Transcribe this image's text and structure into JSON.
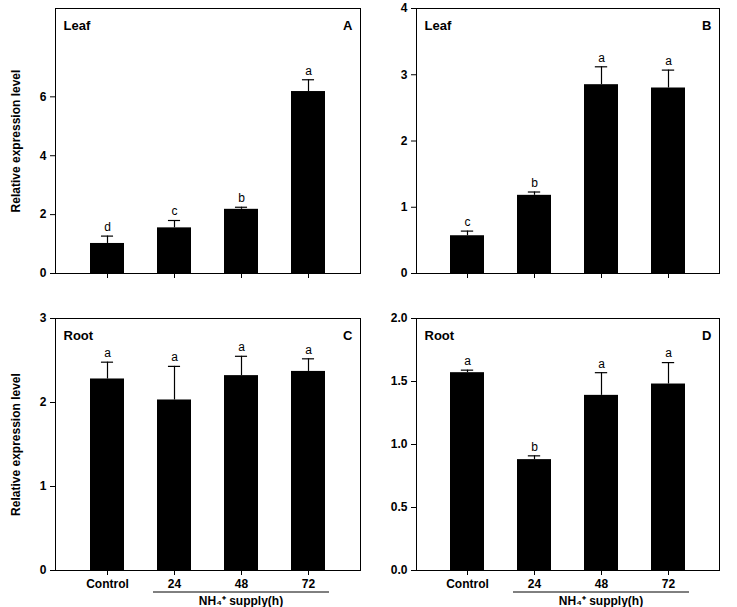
{
  "chart_data": [
    {
      "type": "bar",
      "title": "Leaf",
      "panel_label": "A",
      "categories": [
        "Control",
        "24",
        "48",
        "72"
      ],
      "values": [
        1.02,
        1.55,
        2.18,
        6.18
      ],
      "errors": [
        0.25,
        0.25,
        0.07,
        0.4
      ],
      "letters": [
        "d",
        "c",
        "b",
        "a"
      ],
      "color": "#000000",
      "ylabel": "Relative expression level",
      "ylim": [
        0,
        9
      ],
      "yticks": [
        0,
        2,
        4,
        6
      ],
      "tick_labels": "y"
    },
    {
      "type": "bar",
      "title": "Leaf",
      "panel_label": "B",
      "categories": [
        "Control",
        "24",
        "48",
        "72"
      ],
      "values": [
        0.57,
        1.18,
        2.85,
        2.8
      ],
      "errors": [
        0.07,
        0.05,
        0.27,
        0.27
      ],
      "letters": [
        "c",
        "b",
        "a",
        "a"
      ],
      "color": "#000000",
      "ylim": [
        0,
        4
      ],
      "yticks": [
        0,
        1,
        2,
        3,
        4
      ],
      "tick_labels": "y"
    },
    {
      "type": "bar",
      "title": "Root",
      "panel_label": "C",
      "categories": [
        "Control",
        "24",
        "48",
        "72"
      ],
      "values": [
        2.28,
        2.03,
        2.32,
        2.37
      ],
      "errors": [
        0.2,
        0.4,
        0.23,
        0.15
      ],
      "letters": [
        "a",
        "a",
        "a",
        "a"
      ],
      "color": "#000000",
      "ylabel": "Relative expression level",
      "xlabel": "NH₄⁺ supply(h)",
      "ylim": [
        0,
        3
      ],
      "yticks": [
        0,
        1,
        2,
        3
      ]
    },
    {
      "type": "bar",
      "title": "Root",
      "panel_label": "D",
      "categories": [
        "Control",
        "24",
        "48",
        "72"
      ],
      "values": [
        1.57,
        0.88,
        1.39,
        1.48
      ],
      "errors": [
        0.02,
        0.03,
        0.18,
        0.17
      ],
      "letters": [
        "a",
        "b",
        "a",
        "a"
      ],
      "color": "#000000",
      "xlabel": "NH₄⁺ supply(h)",
      "ylim": [
        0,
        2
      ],
      "yticks": [
        {
          "value": 0,
          "label": "0.0"
        },
        {
          "value": 0.5,
          "label": "0.5"
        },
        {
          "value": 1,
          "label": "1.0"
        },
        {
          "value": 1.5,
          "label": "1.5"
        },
        {
          "value": 2,
          "label": "2.0"
        }
      ]
    }
  ]
}
